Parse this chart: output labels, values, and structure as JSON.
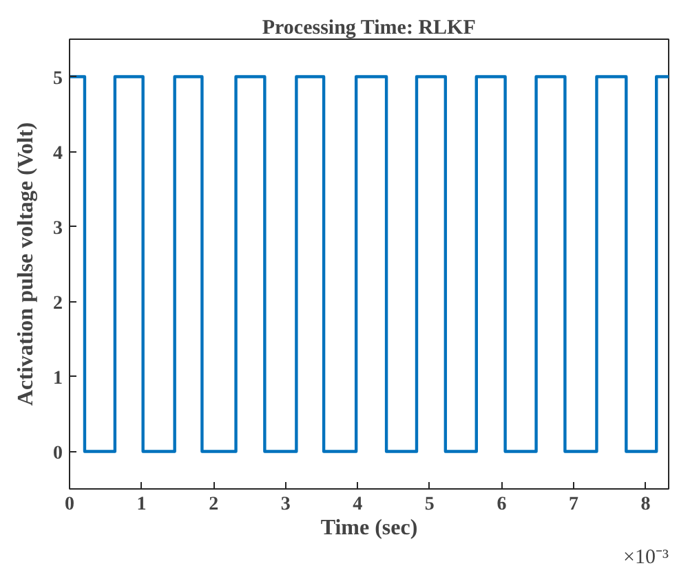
{
  "chart_data": {
    "type": "step",
    "title": "Processing Time: RLKF",
    "xlabel": "Time (sec)",
    "ylabel": "Activation pulse voltage (Volt)",
    "annotations": [
      "×10⁻³"
    ],
    "x": [
      0,
      0.21,
      0.63,
      1.02,
      1.46,
      1.84,
      2.31,
      2.71,
      3.15,
      3.53,
      3.98,
      4.4,
      4.82,
      5.22,
      5.65,
      6.05,
      6.48,
      6.88,
      7.32,
      7.73,
      8.15,
      8.32
    ],
    "series": [
      {
        "color": "#0072bd",
        "values": [
          5,
          0,
          5,
          0,
          5,
          0,
          5,
          0,
          5,
          0,
          5,
          0,
          5,
          0,
          5,
          0,
          5,
          0,
          5,
          0,
          5,
          5
        ]
      }
    ],
    "xlim": [
      0,
      8.32
    ],
    "ylim": [
      -0.5,
      5.5
    ],
    "xticks": [
      0,
      1,
      2,
      3,
      4,
      5,
      6,
      7,
      8
    ],
    "yticks": [
      0,
      1,
      2,
      3,
      4,
      5
    ],
    "grid": false,
    "line_style": "solid"
  }
}
